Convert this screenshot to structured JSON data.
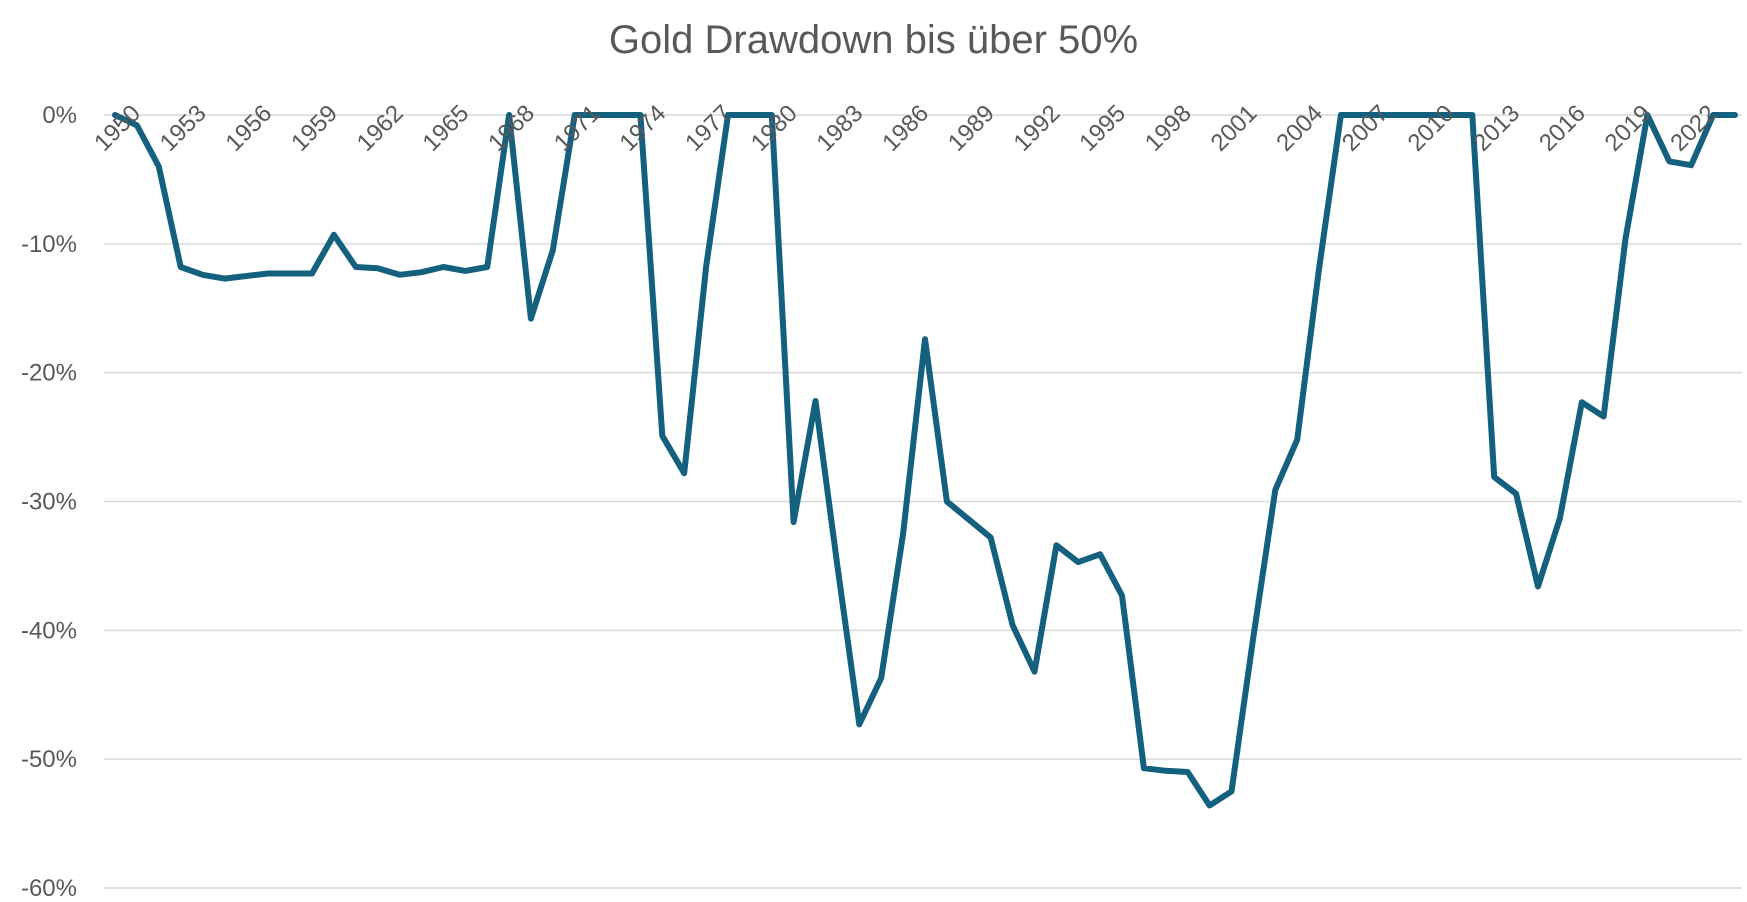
{
  "chart_data": {
    "type": "line",
    "title": "Gold Drawdown bis über 50%",
    "xlabel": "",
    "ylabel": "",
    "ylim": [
      -60,
      0
    ],
    "y_ticks": [
      "0%",
      "-10%",
      "-20%",
      "-30%",
      "-40%",
      "-50%",
      "-60%"
    ],
    "x_tick_labels": [
      "1950",
      "1953",
      "1956",
      "1959",
      "1962",
      "1965",
      "1968",
      "1971",
      "1974",
      "1977",
      "1980",
      "1983",
      "1986",
      "1989",
      "1992",
      "1995",
      "1998",
      "2001",
      "2004",
      "2007",
      "2010",
      "2013",
      "2016",
      "2019",
      "2022"
    ],
    "grid": true,
    "legend": "none",
    "series_color": "#14607f",
    "x": [
      1950,
      1951,
      1952,
      1953,
      1954,
      1955,
      1956,
      1957,
      1958,
      1959,
      1960,
      1961,
      1962,
      1963,
      1964,
      1965,
      1966,
      1967,
      1968,
      1969,
      1970,
      1971,
      1972,
      1973,
      1974,
      1975,
      1976,
      1977,
      1978,
      1979,
      1980,
      1981,
      1982,
      1983,
      1984,
      1985,
      1986,
      1987,
      1988,
      1989,
      1990,
      1991,
      1992,
      1993,
      1994,
      1995,
      1996,
      1997,
      1998,
      1999,
      2000,
      2001,
      2002,
      2003,
      2004,
      2005,
      2006,
      2007,
      2008,
      2009,
      2010,
      2011,
      2012,
      2013,
      2014,
      2015,
      2016,
      2017,
      2018,
      2019,
      2020,
      2021,
      2022,
      2023,
      2024
    ],
    "series": [
      {
        "values": [
          0,
          -0.8,
          -4,
          -11.8,
          -12.4,
          -12.7,
          -12.5,
          -12.3,
          -12.3,
          -12.3,
          -9.3,
          -11.8,
          -11.9,
          -12.4,
          -12.2,
          -11.8,
          -12.1,
          -11.8,
          0,
          -15.8,
          -10.5,
          0,
          0,
          0,
          0,
          -24.9,
          -27.8,
          -11.8,
          0,
          0,
          0,
          -31.6,
          -22.2,
          -35,
          -47.3,
          -43.7,
          -32.5,
          -17.4,
          -30,
          -31.4,
          -32.8,
          -39.6,
          -43.2,
          -33.4,
          -34.7,
          -34.1,
          -37.3,
          -50.7,
          -50.9,
          -51,
          -53.6,
          -52.5,
          -40.5,
          -29.1,
          -25.2,
          -11.9,
          0,
          0,
          0,
          0,
          0,
          0,
          0,
          -28.1,
          -29.4,
          -36.6,
          -31.3,
          -22.3,
          -23.4,
          -9.6,
          0,
          -3.6,
          -3.9,
          0,
          0
        ]
      }
    ]
  }
}
